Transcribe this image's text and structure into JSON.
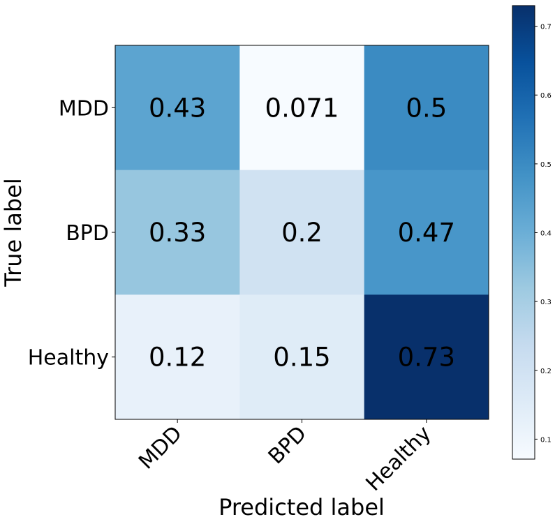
{
  "chart_data": {
    "type": "heatmap",
    "title": "",
    "xlabel": "Predicted label",
    "ylabel": "True label",
    "x_categories": [
      "MDD",
      "BPD",
      "Healthy"
    ],
    "y_categories": [
      "MDD",
      "BPD",
      "Healthy"
    ],
    "values": [
      [
        0.43,
        0.071,
        0.5
      ],
      [
        0.33,
        0.2,
        0.47
      ],
      [
        0.12,
        0.15,
        0.73
      ]
    ],
    "cell_labels": [
      [
        "0.43",
        "0.071",
        "0.5"
      ],
      [
        "0.33",
        "0.2",
        "0.47"
      ],
      [
        "0.12",
        "0.15",
        "0.73"
      ]
    ],
    "colormap": "Blues",
    "color_range": [
      0.071,
      0.73
    ],
    "colorbar_ticks": [
      0.1,
      0.2,
      0.3,
      0.4,
      0.5,
      0.6,
      0.7
    ],
    "colorbar_tick_labels": [
      "0.1",
      "0.2",
      "0.3",
      "0.4",
      "0.5",
      "0.6",
      "0.7"
    ],
    "text_colors": {
      "dark": "#000000",
      "light": "#ffffff"
    }
  }
}
